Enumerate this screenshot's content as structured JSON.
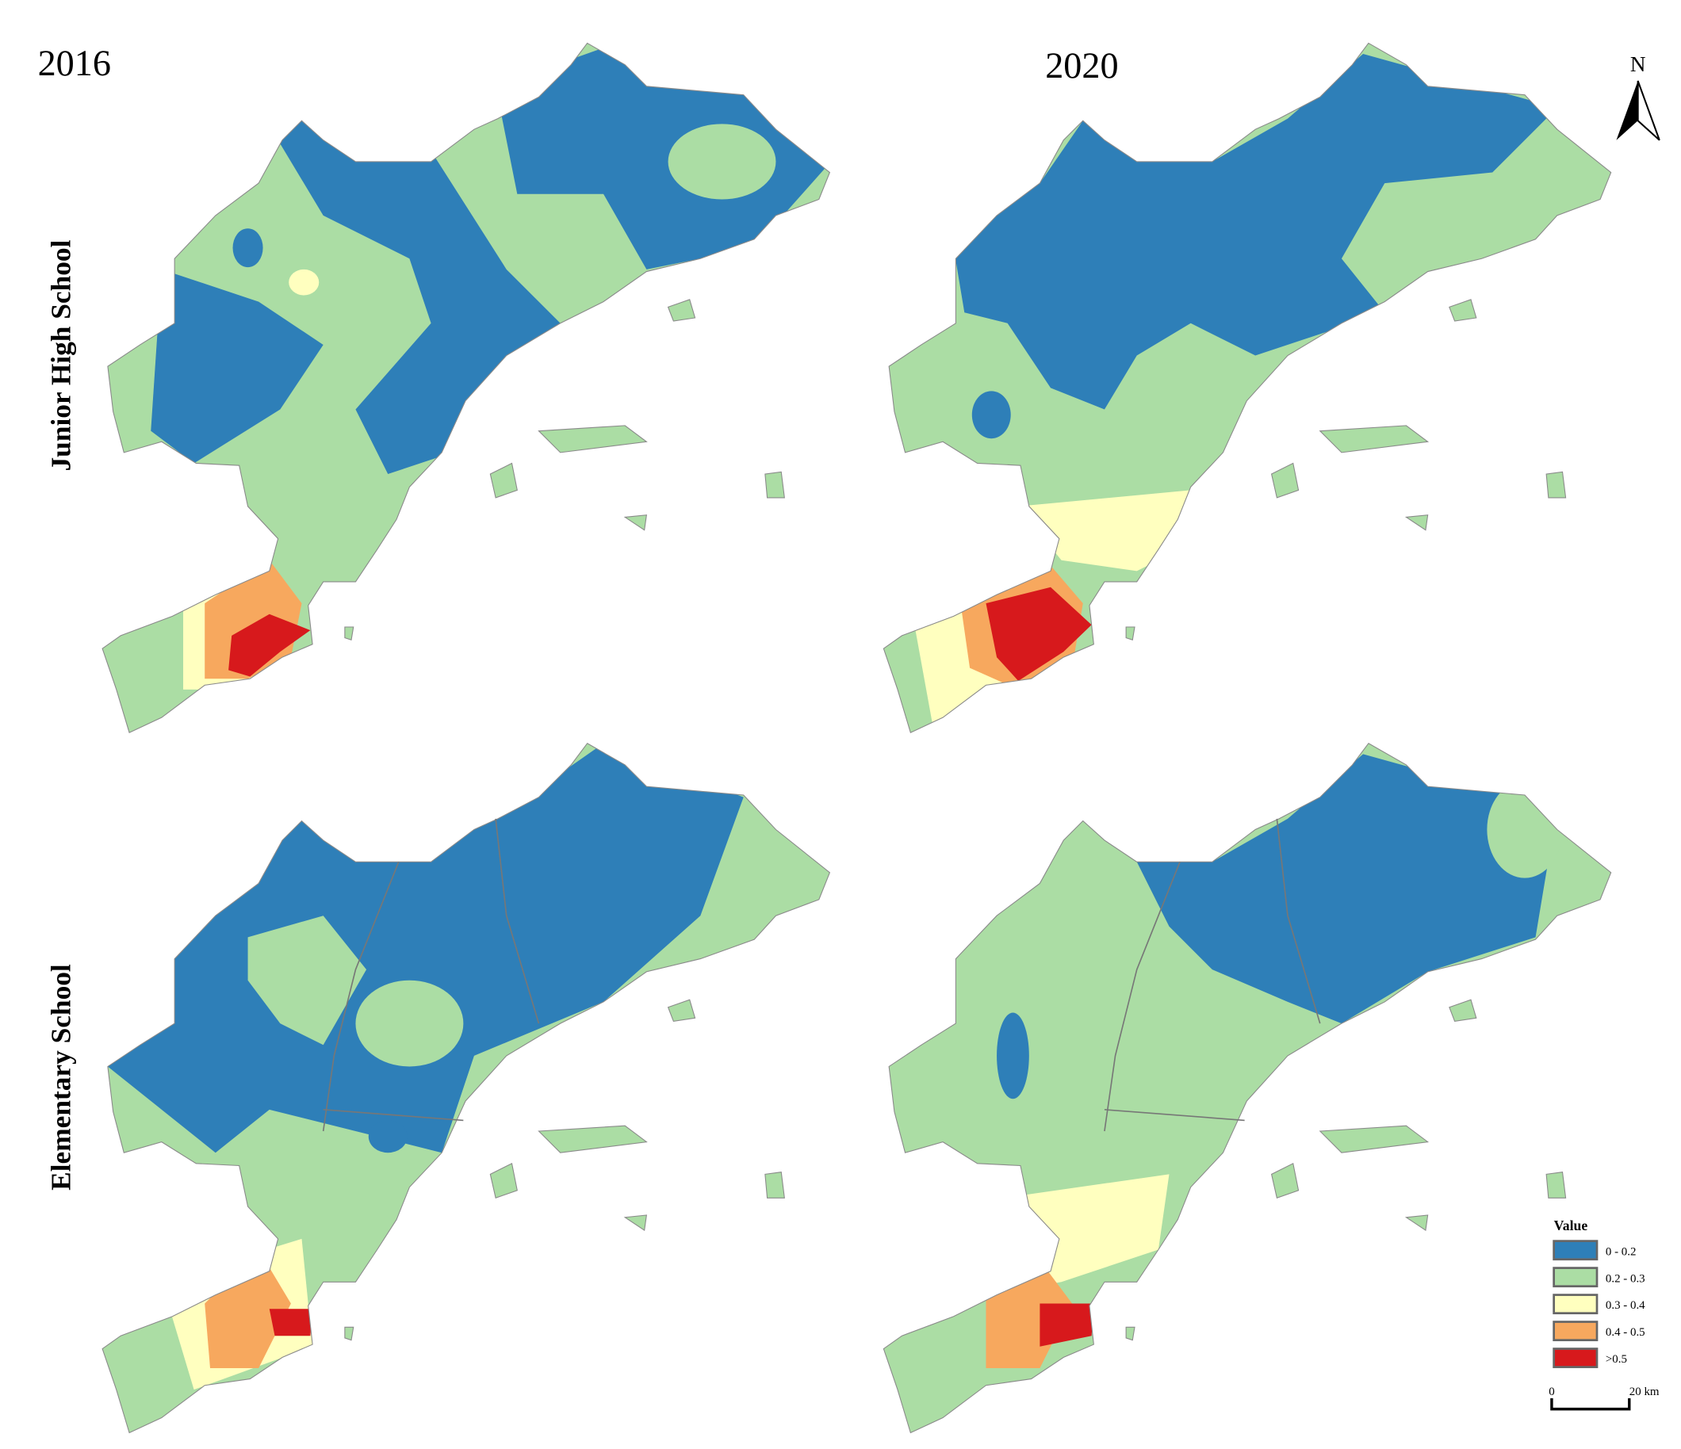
{
  "columns": [
    "2016",
    "2020"
  ],
  "rows": [
    "Junior High School",
    "Elementary School"
  ],
  "north_arrow": "N",
  "legend": {
    "title": "Value",
    "items": [
      {
        "label": "0 - 0.2",
        "color": "#2e7fb8"
      },
      {
        "label": "0.2 - 0.3",
        "color": "#abdda4"
      },
      {
        "label": "0.3 - 0.4",
        "color": "#ffffbf"
      },
      {
        "label": "0.4 - 0.5",
        "color": "#f7a85e"
      },
      {
        "label": ">0.5",
        "color": "#d7191c"
      }
    ]
  },
  "scale_bar": {
    "start": "0",
    "end": "20 km"
  }
}
